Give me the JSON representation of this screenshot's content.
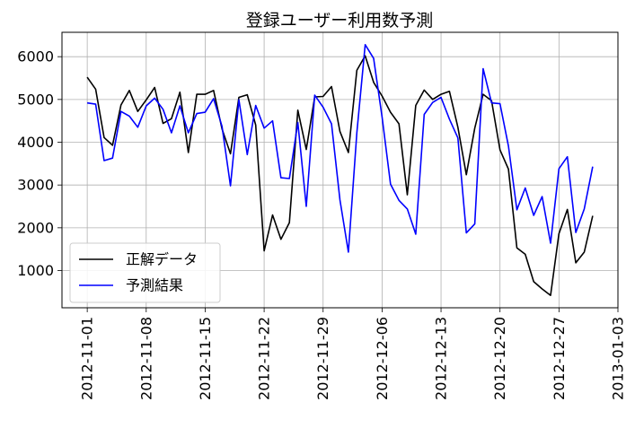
{
  "chart_data": {
    "type": "line",
    "title": "登録ユーザー利用数予測",
    "xlabel": "",
    "ylabel": "",
    "x": [
      "2012-11-01",
      "2012-11-02",
      "2012-11-03",
      "2012-11-04",
      "2012-11-05",
      "2012-11-06",
      "2012-11-07",
      "2012-11-08",
      "2012-11-09",
      "2012-11-10",
      "2012-11-11",
      "2012-11-12",
      "2012-11-13",
      "2012-11-14",
      "2012-11-15",
      "2012-11-16",
      "2012-11-17",
      "2012-11-18",
      "2012-11-19",
      "2012-11-20",
      "2012-11-21",
      "2012-11-22",
      "2012-11-23",
      "2012-11-24",
      "2012-11-25",
      "2012-11-26",
      "2012-11-27",
      "2012-11-28",
      "2012-11-29",
      "2012-11-30",
      "2012-12-01",
      "2012-12-02",
      "2012-12-03",
      "2012-12-04",
      "2012-12-05",
      "2012-12-06",
      "2012-12-07",
      "2012-12-08",
      "2012-12-09",
      "2012-12-10",
      "2012-12-11",
      "2012-12-12",
      "2012-12-13",
      "2012-12-14",
      "2012-12-15",
      "2012-12-16",
      "2012-12-17",
      "2012-12-18",
      "2012-12-19",
      "2012-12-20",
      "2012-12-21",
      "2012-12-22",
      "2012-12-23",
      "2012-12-24",
      "2012-12-25",
      "2012-12-26",
      "2012-12-27",
      "2012-12-28",
      "2012-12-29",
      "2012-12-30",
      "2012-12-31"
    ],
    "series": [
      {
        "name": "正解データ",
        "color": "#000000",
        "values": [
          5520,
          5240,
          4110,
          3930,
          4870,
          5210,
          4720,
          4990,
          5280,
          4440,
          4550,
          5170,
          3760,
          5120,
          5120,
          5210,
          4310,
          3730,
          5050,
          5110,
          4400,
          1460,
          2300,
          1730,
          2120,
          4750,
          3830,
          5060,
          5070,
          5300,
          4250,
          3760,
          5680,
          6020,
          5400,
          5080,
          4700,
          4430,
          2770,
          4860,
          5220,
          5000,
          5120,
          5190,
          4350,
          3240,
          4330,
          5120,
          4970,
          3820,
          3370,
          1530,
          1380,
          740,
          570,
          420,
          1860,
          2430,
          1180,
          1430,
          2280
        ]
      },
      {
        "name": "予測結果",
        "color": "#0000ff",
        "values": [
          4920,
          4890,
          3570,
          3630,
          4720,
          4610,
          4350,
          4850,
          5030,
          4770,
          4220,
          4850,
          4220,
          4670,
          4700,
          5020,
          4370,
          2980,
          4990,
          3710,
          4860,
          4330,
          4500,
          3170,
          3150,
          4460,
          2500,
          5100,
          4820,
          4430,
          2650,
          1430,
          4220,
          6280,
          5960,
          4590,
          3020,
          2640,
          2440,
          1850,
          4650,
          4930,
          5050,
          4540,
          4100,
          1880,
          2090,
          5720,
          4920,
          4900,
          3910,
          2420,
          2930,
          2290,
          2730,
          1640,
          3380,
          3660,
          1890,
          2440,
          3430
        ]
      }
    ],
    "x_ticks": [
      "2012-11-01",
      "2012-11-08",
      "2012-11-15",
      "2012-11-22",
      "2012-11-29",
      "2012-12-06",
      "2012-12-13",
      "2012-12-20",
      "2012-12-27",
      "2013-01-03"
    ],
    "y_ticks": [
      1000,
      2000,
      3000,
      4000,
      5000,
      6000
    ],
    "xlim": [
      "2012-10-29",
      "2013-01-03"
    ],
    "ylim": [
      130,
      6570
    ],
    "grid": true,
    "legend_position": "lower-left"
  }
}
